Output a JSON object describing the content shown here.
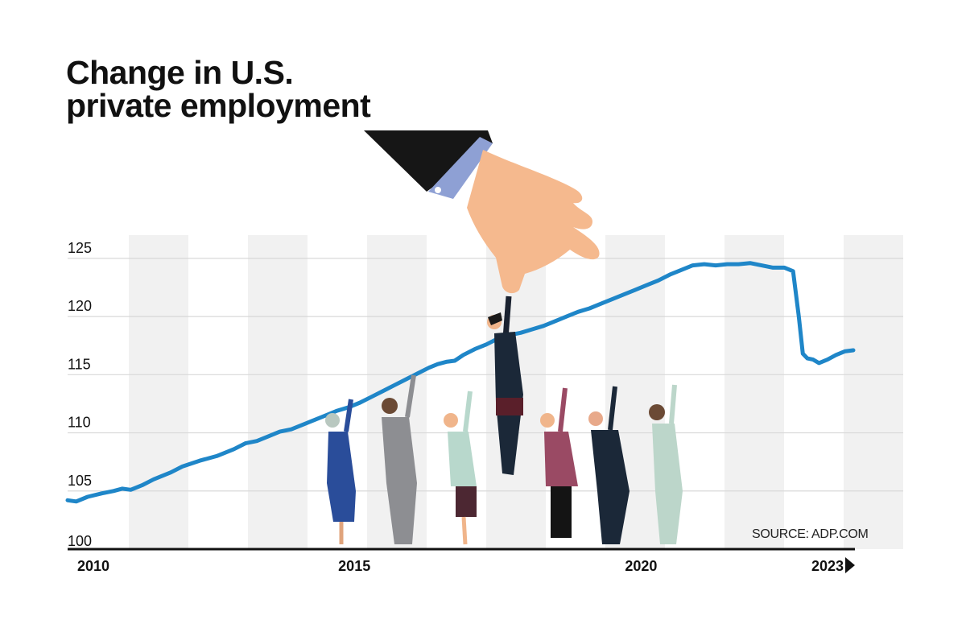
{
  "chart_data": {
    "type": "line",
    "title_lines": [
      "Change in U.S.",
      "private employment"
    ],
    "source": "SOURCE: ADP.COM",
    "ylim": [
      100,
      127
    ],
    "y_ticks": [
      100,
      105,
      110,
      115,
      120,
      125
    ],
    "xlim": [
      2010,
      2023.7
    ],
    "x_ticks": [
      {
        "value": 2010,
        "label": "2010"
      },
      {
        "value": 2015,
        "label": "2015"
      },
      {
        "value": 2020,
        "label": "2020"
      },
      {
        "value": 2023,
        "label": "2023"
      }
    ],
    "grid": true,
    "series": [
      {
        "color": "#1f86c8",
        "points": [
          [
            2010.0,
            104.2
          ],
          [
            2010.15,
            104.1
          ],
          [
            2010.35,
            104.5
          ],
          [
            2010.6,
            104.8
          ],
          [
            2010.8,
            105.0
          ],
          [
            2010.95,
            105.2
          ],
          [
            2011.1,
            105.1
          ],
          [
            2011.3,
            105.5
          ],
          [
            2011.5,
            106.0
          ],
          [
            2011.8,
            106.6
          ],
          [
            2012.0,
            107.1
          ],
          [
            2012.3,
            107.6
          ],
          [
            2012.6,
            108.0
          ],
          [
            2012.9,
            108.6
          ],
          [
            2013.1,
            109.1
          ],
          [
            2013.3,
            109.3
          ],
          [
            2013.5,
            109.7
          ],
          [
            2013.7,
            110.1
          ],
          [
            2013.9,
            110.3
          ],
          [
            2014.1,
            110.7
          ],
          [
            2014.3,
            111.1
          ],
          [
            2014.5,
            111.5
          ],
          [
            2014.7,
            111.9
          ],
          [
            2014.9,
            112.2
          ],
          [
            2015.1,
            112.6
          ],
          [
            2015.3,
            113.1
          ],
          [
            2015.5,
            113.6
          ],
          [
            2015.7,
            114.1
          ],
          [
            2015.9,
            114.6
          ],
          [
            2016.1,
            115.1
          ],
          [
            2016.3,
            115.6
          ],
          [
            2016.45,
            115.9
          ],
          [
            2016.6,
            116.1
          ],
          [
            2016.75,
            116.2
          ],
          [
            2016.9,
            116.7
          ],
          [
            2017.1,
            117.2
          ],
          [
            2017.3,
            117.6
          ],
          [
            2017.5,
            118.1
          ],
          [
            2017.7,
            118.4
          ],
          [
            2017.9,
            118.6
          ],
          [
            2018.1,
            118.9
          ],
          [
            2018.3,
            119.2
          ],
          [
            2018.5,
            119.6
          ],
          [
            2018.7,
            120.0
          ],
          [
            2018.9,
            120.4
          ],
          [
            2019.1,
            120.7
          ],
          [
            2019.3,
            121.1
          ],
          [
            2019.5,
            121.5
          ],
          [
            2019.7,
            121.9
          ],
          [
            2019.9,
            122.3
          ],
          [
            2020.1,
            122.7
          ],
          [
            2020.3,
            123.1
          ],
          [
            2020.5,
            123.6
          ],
          [
            2020.7,
            124.0
          ],
          [
            2020.9,
            124.4
          ],
          [
            2021.1,
            124.5
          ],
          [
            2021.3,
            124.4
          ],
          [
            2021.5,
            124.5
          ],
          [
            2021.7,
            124.5
          ],
          [
            2021.9,
            124.6
          ],
          [
            2022.1,
            124.4
          ],
          [
            2022.3,
            124.2
          ],
          [
            2022.5,
            124.2
          ],
          [
            2022.65,
            123.9
          ],
          [
            2022.75,
            120.0
          ],
          [
            2022.82,
            116.8
          ],
          [
            2022.9,
            116.4
          ],
          [
            2023.0,
            116.3
          ],
          [
            2023.1,
            116.0
          ],
          [
            2023.25,
            116.3
          ],
          [
            2023.4,
            116.7
          ],
          [
            2023.55,
            117.0
          ],
          [
            2023.7,
            117.1
          ]
        ]
      }
    ]
  }
}
